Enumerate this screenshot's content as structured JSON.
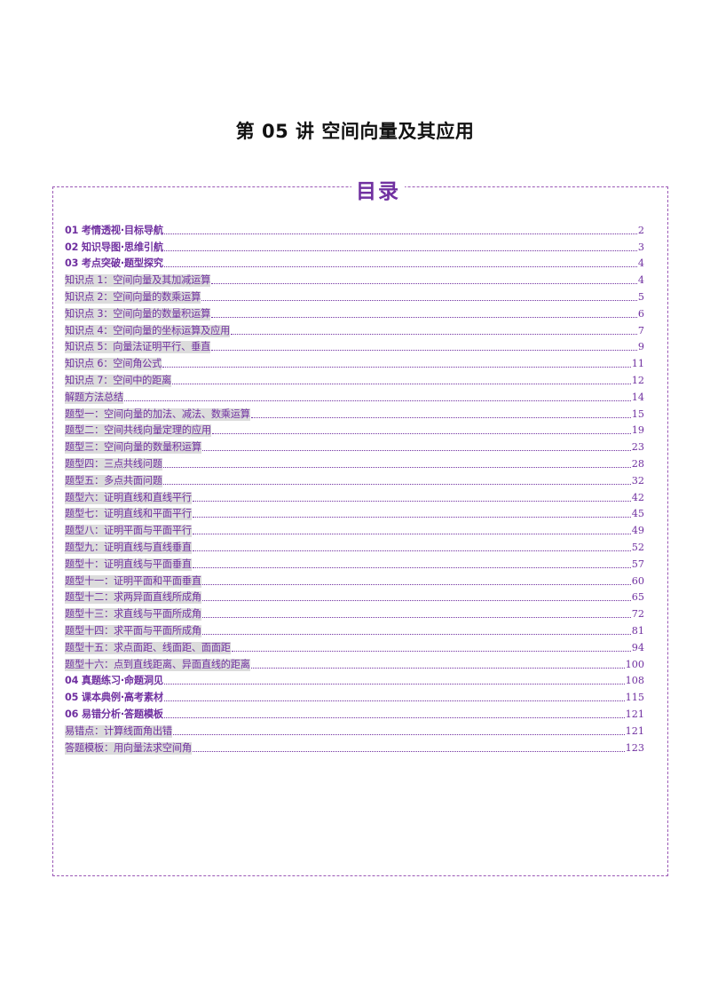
{
  "document": {
    "title": "第 05 讲  空间向量及其应用",
    "toc_heading": "目录"
  },
  "colors": {
    "accent": "#7030a0",
    "border": "#9b59b6",
    "highlight": "#dcdcdc"
  },
  "toc": [
    {
      "label": "01 考情透视·目标导航",
      "page": "2",
      "level": 1,
      "highlight": false
    },
    {
      "label": "02 知识导图·思维引航",
      "page": "3",
      "level": 1,
      "highlight": false
    },
    {
      "label": "03 考点突破·题型探究",
      "page": "4",
      "level": 1,
      "highlight": false
    },
    {
      "label": "知识点 1：空间向量及其加减运算",
      "page": "4",
      "level": 2,
      "highlight": true
    },
    {
      "label": "知识点 2：空间向量的数乘运算",
      "page": "5",
      "level": 2,
      "highlight": true
    },
    {
      "label": "知识点 3：空间向量的数量积运算",
      "page": "6",
      "level": 2,
      "highlight": true
    },
    {
      "label": "知识点 4：空间向量的坐标运算及应用",
      "page": "7",
      "level": 2,
      "highlight": true
    },
    {
      "label": "知识点 5：向量法证明平行、垂直",
      "page": "9",
      "level": 2,
      "highlight": true
    },
    {
      "label": "知识点 6：空间角公式",
      "page": "11",
      "level": 2,
      "highlight": true
    },
    {
      "label": "知识点 7：空间中的距离",
      "page": "12",
      "level": 2,
      "highlight": true
    },
    {
      "label": "解题方法总结",
      "page": "14",
      "level": 2,
      "highlight": true
    },
    {
      "label": "题型一：空间向量的加法、减法、数乘运算",
      "page": "15",
      "level": 2,
      "highlight": true
    },
    {
      "label": "题型二：空间共线向量定理的应用",
      "page": "19",
      "level": 2,
      "highlight": true
    },
    {
      "label": "题型三：空间向量的数量积运算",
      "page": "23",
      "level": 2,
      "highlight": true
    },
    {
      "label": "题型四：三点共线问题",
      "page": "28",
      "level": 2,
      "highlight": true
    },
    {
      "label": "题型五：多点共面问题",
      "page": "32",
      "level": 2,
      "highlight": true
    },
    {
      "label": "题型六：证明直线和直线平行",
      "page": "42",
      "level": 2,
      "highlight": true
    },
    {
      "label": "题型七：证明直线和平面平行",
      "page": "45",
      "level": 2,
      "highlight": true
    },
    {
      "label": "题型八：证明平面与平面平行",
      "page": "49",
      "level": 2,
      "highlight": true
    },
    {
      "label": "题型九：证明直线与直线垂直",
      "page": "52",
      "level": 2,
      "highlight": true
    },
    {
      "label": "题型十：证明直线与平面垂直",
      "page": "57",
      "level": 2,
      "highlight": true
    },
    {
      "label": "题型十一：证明平面和平面垂直",
      "page": "60",
      "level": 2,
      "highlight": true
    },
    {
      "label": "题型十二：求两异面直线所成角",
      "page": "65",
      "level": 2,
      "highlight": true
    },
    {
      "label": "题型十三：求直线与平面所成角",
      "page": "72",
      "level": 2,
      "highlight": true
    },
    {
      "label": "题型十四：求平面与平面所成角",
      "page": "81",
      "level": 2,
      "highlight": true
    },
    {
      "label": "题型十五：求点面距、线面距、面面距",
      "page": "94",
      "level": 2,
      "highlight": true
    },
    {
      "label": "题型十六：点到直线距离、异面直线的距离",
      "page": "100",
      "level": 2,
      "highlight": true
    },
    {
      "label": "04 真题练习·命题洞见",
      "page": "108",
      "level": 1,
      "highlight": false
    },
    {
      "label": "05 课本典例·高考素材",
      "page": "115",
      "level": 1,
      "highlight": false
    },
    {
      "label": "06 易错分析·答题模板",
      "page": "121",
      "level": 1,
      "highlight": false
    },
    {
      "label": "易错点：计算线面角出错",
      "page": "121",
      "level": 2,
      "highlight": true
    },
    {
      "label": "答题模板：用向量法求空间角",
      "page": "123",
      "level": 2,
      "highlight": true
    }
  ]
}
